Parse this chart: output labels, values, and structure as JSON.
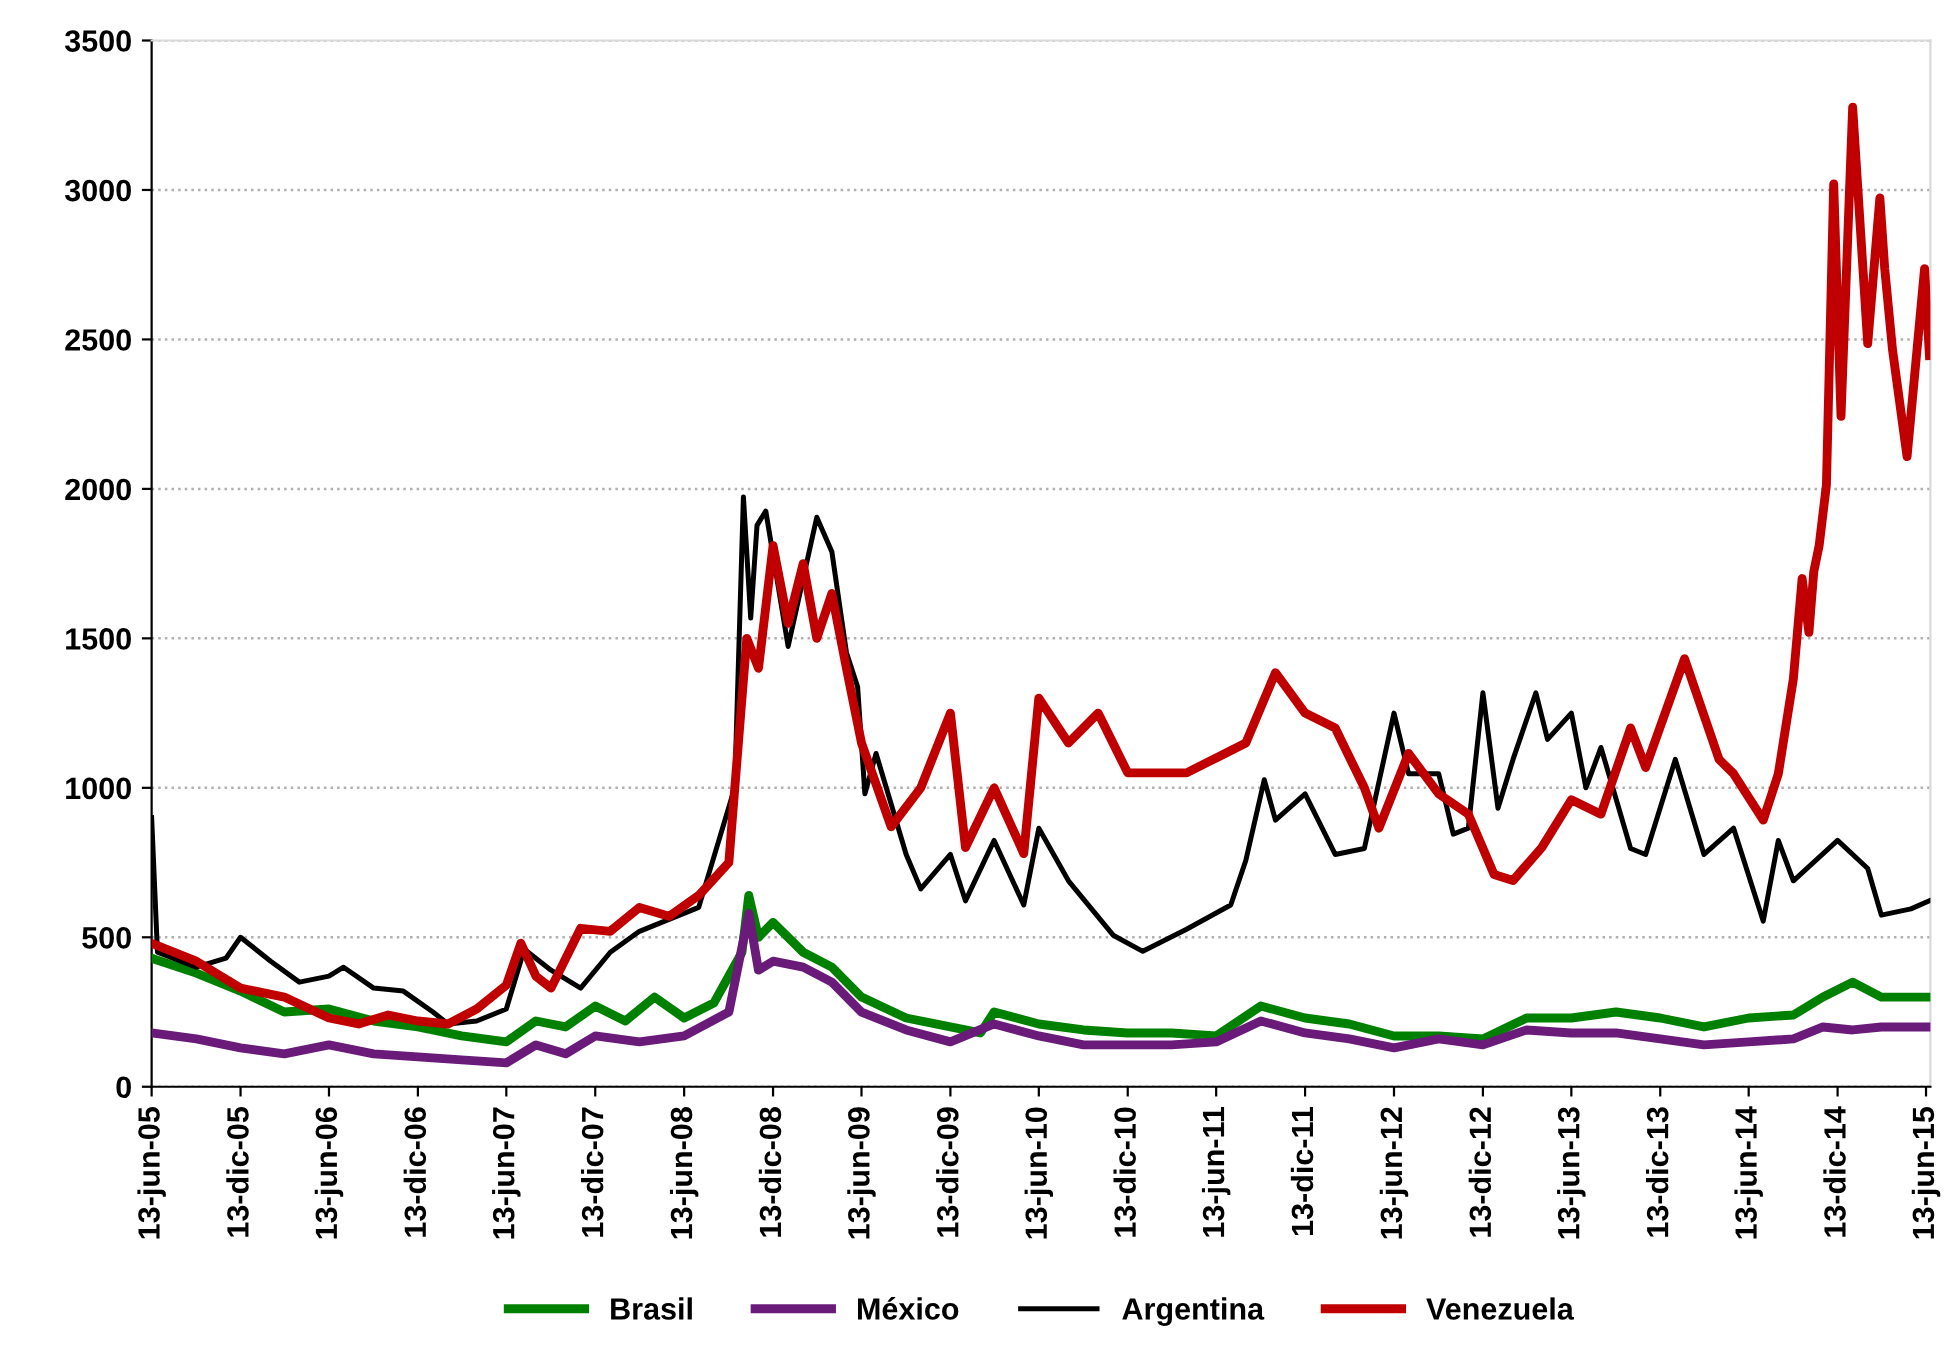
{
  "chart_data": {
    "type": "line",
    "xlim": [
      "2005-06-13",
      "2015-06-22"
    ],
    "xticks": [
      {
        "value": "2005-06-13",
        "label": "13-jun-05"
      },
      {
        "value": "2005-12-13",
        "label": "13-dic-05"
      },
      {
        "value": "2006-06-13",
        "label": "13-jun-06"
      },
      {
        "value": "2006-12-13",
        "label": "13-dic-06"
      },
      {
        "value": "2007-06-13",
        "label": "13-jun-07"
      },
      {
        "value": "2007-12-13",
        "label": "13-dic-07"
      },
      {
        "value": "2008-06-13",
        "label": "13-jun-08"
      },
      {
        "value": "2008-12-13",
        "label": "13-dic-08"
      },
      {
        "value": "2009-06-13",
        "label": "13-jun-09"
      },
      {
        "value": "2009-12-13",
        "label": "13-dic-09"
      },
      {
        "value": "2010-06-13",
        "label": "13-jun-10"
      },
      {
        "value": "2010-12-13",
        "label": "13-dic-10"
      },
      {
        "value": "2011-06-13",
        "label": "13-jun-11"
      },
      {
        "value": "2011-12-13",
        "label": "13-dic-11"
      },
      {
        "value": "2012-06-13",
        "label": "13-jun-12"
      },
      {
        "value": "2012-12-13",
        "label": "13-dic-12"
      },
      {
        "value": "2013-06-13",
        "label": "13-jun-13"
      },
      {
        "value": "2013-12-13",
        "label": "13-dic-13"
      },
      {
        "value": "2014-06-13",
        "label": "13-jun-14"
      },
      {
        "value": "2014-12-13",
        "label": "13-dic-14"
      },
      {
        "value": "2015-06-13",
        "label": "13-jun-15"
      }
    ],
    "ylim": [
      0,
      3500
    ],
    "yticks": [
      0,
      500,
      1000,
      1500,
      2000,
      2500,
      3000,
      3500
    ],
    "grid": "y",
    "legend": "bottom",
    "marker": "none",
    "line_style": "solid",
    "series": [
      {
        "name": "Brasil",
        "color": "#008000",
        "x": [
          "2005-06-13",
          "2005-09-13",
          "2005-12-13",
          "2006-03-13",
          "2006-06-13",
          "2006-09-13",
          "2006-12-13",
          "2007-03-13",
          "2007-06-13",
          "2007-08-13",
          "2007-10-13",
          "2007-12-13",
          "2008-02-13",
          "2008-04-13",
          "2008-06-13",
          "2008-08-13",
          "2008-10-10",
          "2008-10-24",
          "2008-11-13",
          "2008-12-13",
          "2009-02-13",
          "2009-04-13",
          "2009-06-13",
          "2009-09-13",
          "2009-12-13",
          "2010-02-13",
          "2010-03-13",
          "2010-06-13",
          "2010-09-13",
          "2010-12-13",
          "2011-03-13",
          "2011-06-13",
          "2011-09-13",
          "2011-12-13",
          "2012-03-13",
          "2012-06-13",
          "2012-09-13",
          "2012-12-13",
          "2013-03-13",
          "2013-06-13",
          "2013-09-13",
          "2013-12-13",
          "2014-03-13",
          "2014-06-13",
          "2014-09-13",
          "2014-11-13",
          "2015-01-13",
          "2015-03-13",
          "2015-06-20"
        ],
        "values": [
          430,
          380,
          320,
          250,
          260,
          220,
          200,
          170,
          150,
          220,
          200,
          270,
          220,
          300,
          230,
          280,
          450,
          640,
          500,
          550,
          450,
          400,
          300,
          230,
          200,
          180,
          250,
          210,
          190,
          180,
          180,
          170,
          270,
          230,
          210,
          170,
          170,
          160,
          230,
          230,
          250,
          230,
          200,
          230,
          240,
          300,
          350,
          300,
          300
        ]
      },
      {
        "name": "México",
        "color": "#6a1b7a",
        "x": [
          "2005-06-13",
          "2005-09-13",
          "2005-12-13",
          "2006-03-13",
          "2006-06-13",
          "2006-09-13",
          "2006-12-13",
          "2007-03-13",
          "2007-06-13",
          "2007-08-13",
          "2007-10-13",
          "2007-12-13",
          "2008-03-13",
          "2008-06-13",
          "2008-09-13",
          "2008-10-24",
          "2008-11-13",
          "2008-12-13",
          "2009-02-13",
          "2009-04-13",
          "2009-06-13",
          "2009-09-13",
          "2009-12-13",
          "2010-03-13",
          "2010-06-13",
          "2010-09-13",
          "2010-12-13",
          "2011-03-13",
          "2011-06-13",
          "2011-09-13",
          "2011-12-13",
          "2012-03-13",
          "2012-06-13",
          "2012-09-13",
          "2012-12-13",
          "2013-03-13",
          "2013-06-13",
          "2013-09-13",
          "2013-12-13",
          "2014-03-13",
          "2014-06-13",
          "2014-09-13",
          "2014-11-13",
          "2015-01-13",
          "2015-03-13",
          "2015-06-20"
        ],
        "values": [
          180,
          160,
          130,
          110,
          140,
          110,
          100,
          90,
          80,
          140,
          110,
          170,
          150,
          170,
          250,
          580,
          390,
          420,
          400,
          350,
          250,
          190,
          150,
          210,
          170,
          140,
          140,
          140,
          150,
          220,
          180,
          160,
          130,
          160,
          140,
          190,
          180,
          180,
          160,
          140,
          150,
          160,
          200,
          190,
          200,
          200
        ]
      },
      {
        "name": "Argentina",
        "color": "#000000",
        "x": [
          "2005-06-13",
          "2005-06-25",
          "2005-09-13",
          "2005-11-13",
          "2005-12-13",
          "2006-02-13",
          "2006-04-13",
          "2006-06-13",
          "2006-07-13",
          "2006-09-13",
          "2006-11-13",
          "2007-01-13",
          "2007-02-13",
          "2007-04-13",
          "2007-06-13",
          "2007-07-20",
          "2007-09-13",
          "2007-11-13",
          "2008-01-13",
          "2008-03-13",
          "2008-05-13",
          "2008-07-13",
          "2008-09-25",
          "2008-10-13",
          "2008-10-28",
          "2008-11-10",
          "2008-11-28",
          "2009-01-13",
          "2009-03-13",
          "2009-04-13",
          "2009-05-13",
          "2009-06-05",
          "2009-06-20",
          "2009-07-13",
          "2009-09-13",
          "2009-10-13",
          "2009-12-13",
          "2010-01-13",
          "2010-03-13",
          "2010-05-13",
          "2010-06-13",
          "2010-08-13",
          "2010-11-13",
          "2011-01-13",
          "2011-04-13",
          "2011-07-13",
          "2011-08-13",
          "2011-09-20",
          "2011-10-13",
          "2011-12-13",
          "2012-02-13",
          "2012-04-13",
          "2012-06-13",
          "2012-07-13",
          "2012-09-13",
          "2012-10-13",
          "2012-11-13",
          "2012-12-13",
          "2013-01-13",
          "2013-02-13",
          "2013-04-01",
          "2013-04-25",
          "2013-06-13",
          "2013-07-13",
          "2013-08-13",
          "2013-10-13",
          "2013-11-13",
          "2014-01-13",
          "2014-03-13",
          "2014-05-13",
          "2014-07-13",
          "2014-08-13",
          "2014-09-13",
          "2014-12-13",
          "2015-02-13",
          "2015-03-13",
          "2015-05-13",
          "2015-06-20"
        ],
        "values": [
          900,
          450,
          400,
          430,
          500,
          420,
          350,
          370,
          400,
          330,
          320,
          250,
          210,
          220,
          260,
          460,
          390,
          330,
          450,
          520,
          560,
          600,
          1000,
          1973,
          1568,
          1878,
          1926,
          1473,
          1905,
          1790,
          1453,
          1338,
          980,
          1115,
          777,
          662,
          777,
          622,
          824,
          608,
          865,
          689,
          507,
          453,
          527,
          608,
          757,
          1027,
          892,
          980,
          777,
          797,
          1250,
          1047,
          1047,
          845,
          865,
          1318,
          932,
          1095,
          1318,
          1162,
          1250,
          1000,
          1135,
          797,
          777,
          1095,
          777,
          865,
          554,
          824,
          689,
          824,
          730,
          574,
          595,
          622
        ]
      },
      {
        "name": "Venezuela",
        "color": "#c00000",
        "x": [
          "2005-06-13",
          "2005-09-13",
          "2005-12-13",
          "2006-03-13",
          "2006-06-13",
          "2006-08-13",
          "2006-10-13",
          "2006-12-13",
          "2007-02-13",
          "2007-04-13",
          "2007-06-13",
          "2007-07-13",
          "2007-08-13",
          "2007-09-13",
          "2007-11-13",
          "2008-01-13",
          "2008-03-13",
          "2008-05-13",
          "2008-07-13",
          "2008-09-13",
          "2008-10-10",
          "2008-10-20",
          "2008-11-13",
          "2008-12-13",
          "2009-01-13",
          "2009-02-13",
          "2009-03-13",
          "2009-04-13",
          "2009-05-13",
          "2009-06-13",
          "2009-08-13",
          "2009-10-13",
          "2009-12-13",
          "2010-01-13",
          "2010-03-13",
          "2010-05-13",
          "2010-06-13",
          "2010-08-13",
          "2010-10-13",
          "2010-12-13",
          "2011-02-13",
          "2011-04-13",
          "2011-06-13",
          "2011-08-13",
          "2011-10-13",
          "2011-12-13",
          "2012-02-13",
          "2012-04-13",
          "2012-05-13",
          "2012-07-13",
          "2012-09-13",
          "2012-11-13",
          "2013-01-05",
          "2013-02-13",
          "2013-04-13",
          "2013-06-13",
          "2013-08-13",
          "2013-10-13",
          "2013-11-13",
          "2014-02-01",
          "2014-04-13",
          "2014-05-13",
          "2014-07-13",
          "2014-08-13",
          "2014-09-13",
          "2014-10-01",
          "2014-10-15",
          "2014-10-25",
          "2014-11-05",
          "2014-11-20",
          "2014-12-05",
          "2014-12-20",
          "2015-01-13",
          "2015-02-13",
          "2015-03-10",
          "2015-03-20",
          "2015-04-05",
          "2015-05-05",
          "2015-06-10",
          "2015-06-20"
        ],
        "values": [
          480,
          420,
          330,
          300,
          230,
          210,
          240,
          220,
          210,
          260,
          340,
          480,
          370,
          330,
          530,
          520,
          600,
          570,
          640,
          750,
          1300,
          1500,
          1400,
          1810,
          1550,
          1750,
          1500,
          1650,
          1400,
          1150,
          870,
          1000,
          1250,
          800,
          1000,
          780,
          1300,
          1150,
          1250,
          1050,
          1050,
          1050,
          1100,
          1150,
          1385,
          1250,
          1200,
          1000,
          865,
          1115,
          980,
          912,
          710,
          690,
          800,
          960,
          912,
          1200,
          1068,
          1432,
          1095,
          1047,
          892,
          1047,
          1365,
          1700,
          1520,
          1723,
          1810,
          2013,
          3020,
          2243,
          3277,
          2486,
          2973,
          2737,
          2466,
          2108,
          2737,
          2446
        ]
      }
    ]
  }
}
